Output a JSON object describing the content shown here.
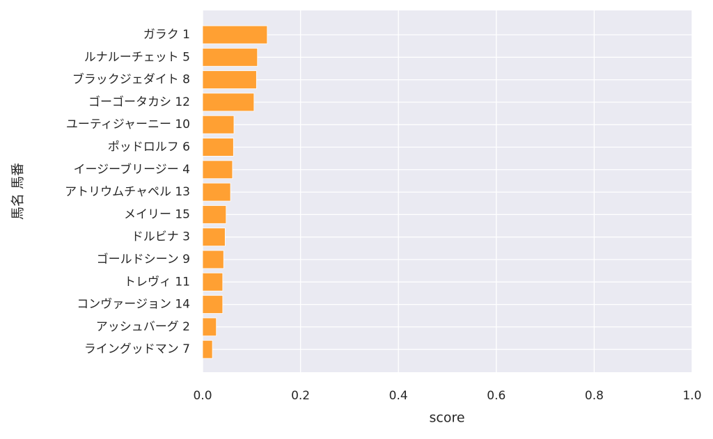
{
  "chart_data": {
    "type": "barh",
    "categories": [
      "ガラク 1",
      "ルナルーチェット 5",
      "ブラックジェダイト 8",
      "ゴーゴータカシ 12",
      "ユーティジャーニー 10",
      "ポッドロルフ 6",
      "イージーブリージー 4",
      "アトリウムチャペル 13",
      "メイリー 15",
      "ドルビナ 3",
      "ゴールドシーン 9",
      "トレヴィ 11",
      "コンヴァージョン 14",
      "アッシュバーグ 2",
      "ライングッドマン 7"
    ],
    "values": [
      0.132,
      0.112,
      0.11,
      0.105,
      0.064,
      0.063,
      0.061,
      0.057,
      0.048,
      0.046,
      0.043,
      0.041,
      0.041,
      0.028,
      0.02
    ],
    "color": "#ffa033",
    "xlabel": "score",
    "ylabel": "馬名 馬番",
    "xlim": [
      0,
      1
    ],
    "xticks": [
      {
        "value": 0,
        "label": "0.0"
      },
      0.2,
      0.4,
      0.6,
      0.8,
      {
        "value": 1,
        "label": "1.0"
      }
    ],
    "grid": true
  }
}
